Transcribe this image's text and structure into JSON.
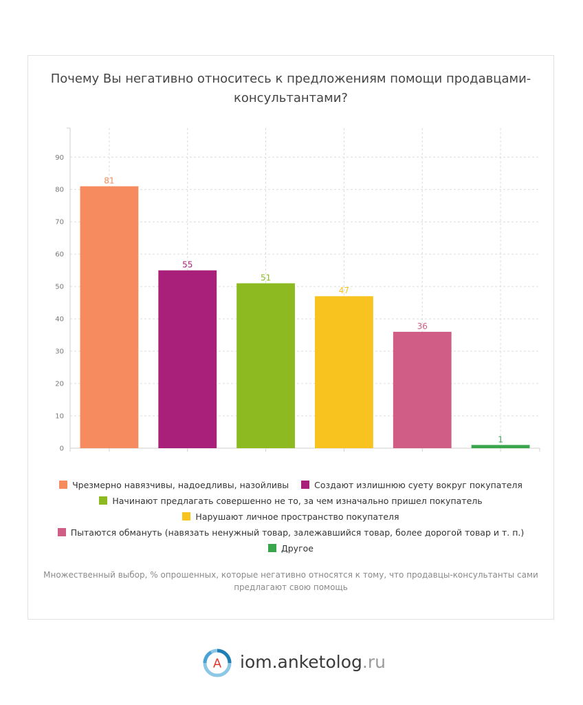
{
  "title": "Почему Вы негативно относитесь к предложениям помощи продавцами-консультантами?",
  "note": "Множественный выбор, % опрошенных, которые негативно относятся к тому, что продавцы-консультанты сами предлагают свою помощь",
  "logo": {
    "text": "iom.anketolog",
    "tld": ".ru",
    "mark_letter": "A",
    "icon": "anketolog-logo-icon"
  },
  "chart_data": {
    "type": "bar",
    "title": "Почему Вы негативно относитесь к предложениям помощи продавцами-консультантами?",
    "xlabel": "",
    "ylabel": "",
    "ylim": [
      0,
      99
    ],
    "yticks": [
      "0",
      "10",
      "20",
      "30",
      "40",
      "50",
      "60",
      "70",
      "80",
      "90"
    ],
    "grid": true,
    "legend_position": "bottom",
    "categories": [
      "Чрезмерно навязчивы, надоедливы, назойливы",
      "Создают излишнюю суету вокруг покупателя",
      "Начинают предлагать совершенно не то, за чем изначально пришел покупатель",
      "Нарушают личное пространство покупателя",
      "Пытаются обмануть (навязать ненужный товар, залежавшийся товар, более дорогой товар и т. п.)",
      "Другое"
    ],
    "values": [
      81,
      55,
      51,
      47,
      36,
      1
    ],
    "value_labels": [
      "81",
      "55",
      "51",
      "47",
      "36",
      "1"
    ],
    "colors": [
      "#f58b5f",
      "#a8207a",
      "#8dba21",
      "#f9c31f",
      "#d05d85",
      "#3aa64b"
    ]
  }
}
